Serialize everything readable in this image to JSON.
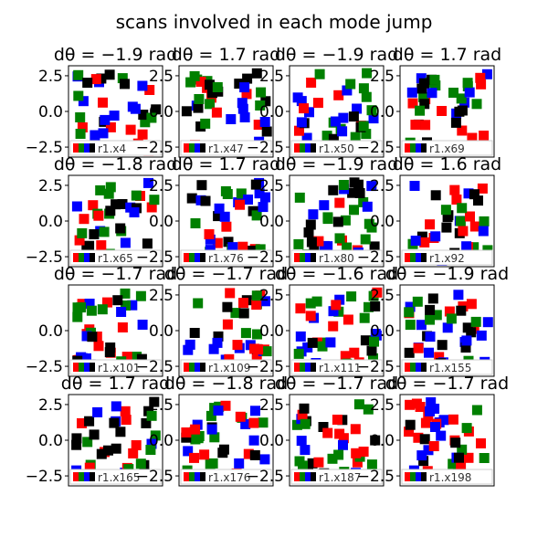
{
  "suptitle": "scans involved in each mode jump",
  "colors": {
    "red": "#ff0000",
    "green": "#008000",
    "blue": "#0000ff",
    "black": "#000000"
  },
  "chart_data": [
    {
      "type": "scatter",
      "title": "dθ = −1.9 rad",
      "ylim": [
        -3.2,
        3.2
      ],
      "yticks": [
        "2.5",
        "0.0",
        "−2.5"
      ],
      "legend": "r1.x4",
      "seed": 1
    },
    {
      "type": "scatter",
      "title": "dθ = 1.7 rad",
      "ylim": [
        -3.2,
        3.2
      ],
      "yticks": [
        "2.5",
        "0.0",
        "−2.5"
      ],
      "legend": "r1.x47",
      "seed": 2
    },
    {
      "type": "scatter",
      "title": "dθ = −1.9 rad",
      "ylim": [
        -3.2,
        3.2
      ],
      "yticks": [
        "2.5",
        "0.0",
        "−2.5"
      ],
      "legend": "r1.x50",
      "seed": 3
    },
    {
      "type": "scatter",
      "title": "dθ = 1.7 rad",
      "ylim": [
        -3.2,
        3.2
      ],
      "yticks": [
        "2.5",
        "0.0",
        "−2.5"
      ],
      "legend": "r1.x69",
      "seed": 4
    },
    {
      "type": "scatter",
      "title": "dθ = −1.8 rad",
      "ylim": [
        -3.2,
        3.2
      ],
      "yticks": [
        "2.5",
        "0.0",
        "−2.5"
      ],
      "legend": "r1.x65",
      "seed": 5
    },
    {
      "type": "scatter",
      "title": "dθ = 1.7 rad",
      "ylim": [
        -3.2,
        3.2
      ],
      "yticks": [
        "2.5",
        "0.0",
        "−2.5"
      ],
      "legend": "r1.x76",
      "seed": 6
    },
    {
      "type": "scatter",
      "title": "dθ = −1.9 rad",
      "ylim": [
        -3.2,
        3.2
      ],
      "yticks": [
        "2.5",
        "0.0",
        "−2.5"
      ],
      "legend": "r1.x80",
      "seed": 7
    },
    {
      "type": "scatter",
      "title": "dθ = 1.6 rad",
      "ylim": [
        -3.2,
        3.2
      ],
      "yticks": [
        "2.5",
        "0.0",
        "−2.5"
      ],
      "legend": "r1.x92",
      "seed": 8
    },
    {
      "type": "scatter",
      "title": "dθ = −1.7 rad",
      "ylim": [
        -3.2,
        3.2
      ],
      "yticks": [
        "0.0",
        "−2.5"
      ],
      "legend": "r1.x101",
      "seed": 9
    },
    {
      "type": "scatter",
      "title": "dθ = −1.7 rad",
      "ylim": [
        -3.2,
        3.2
      ],
      "yticks": [
        "2.5",
        "0.0",
        "−2.5"
      ],
      "legend": "r1.x109",
      "seed": 10
    },
    {
      "type": "scatter",
      "title": "dθ = −1.6 rad",
      "ylim": [
        -3.2,
        3.2
      ],
      "yticks": [
        "2.5",
        "0.0",
        "−2.5"
      ],
      "legend": "r1.x111",
      "seed": 11
    },
    {
      "type": "scatter",
      "title": "dθ = −1.9 rad",
      "ylim": [
        -3.2,
        3.2
      ],
      "yticks": [
        "2.5",
        "0.0",
        "−2.5"
      ],
      "legend": "r1.x155",
      "seed": 12
    },
    {
      "type": "scatter",
      "title": "dθ = 1.7 rad",
      "ylim": [
        -3.2,
        3.2
      ],
      "yticks": [
        "2.5",
        "0.0",
        "−2.5"
      ],
      "legend": "r1.x165",
      "seed": 13
    },
    {
      "type": "scatter",
      "title": "dθ = −1.8 rad",
      "ylim": [
        -3.2,
        3.2
      ],
      "yticks": [
        "2.5",
        "0.0",
        "−2.5"
      ],
      "legend": "r1.x176",
      "seed": 14
    },
    {
      "type": "scatter",
      "title": "dθ = −1.7 rad",
      "ylim": [
        -3.2,
        3.2
      ],
      "yticks": [
        "2.5",
        "0.0",
        "−2.5"
      ],
      "legend": "r1.x187",
      "seed": 15
    },
    {
      "type": "scatter",
      "title": "dθ = −1.7 rad",
      "ylim": [
        -3.2,
        3.2
      ],
      "yticks": [
        "2.5",
        "0.0",
        "−2.5"
      ],
      "legend": "r1.x198",
      "seed": 16
    }
  ]
}
